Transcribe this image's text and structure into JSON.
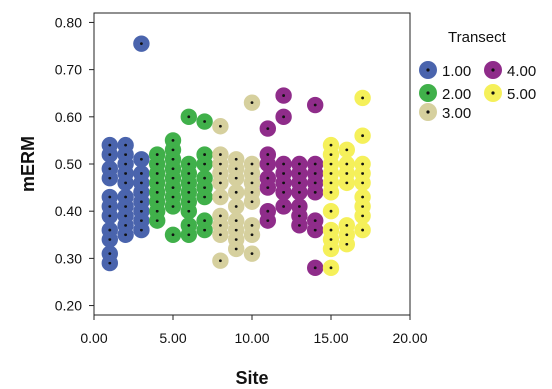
{
  "chart_data": {
    "type": "scatter",
    "title": "",
    "xlabel": "Site",
    "ylabel": "mERM",
    "xlim": [
      0,
      20
    ],
    "ylim": [
      0.18,
      0.82
    ],
    "xticks": [
      "0.00",
      "5.00",
      "10.00",
      "15.00",
      "20.00"
    ],
    "yticks": [
      "0.20",
      "0.30",
      "0.40",
      "0.50",
      "0.60",
      "0.70",
      "0.80"
    ],
    "grid": false,
    "legend": {
      "title": "Transect",
      "placement": "right",
      "entries": [
        "1.00",
        "2.00",
        "3.00",
        "4.00",
        "5.00"
      ]
    },
    "series": [
      {
        "name": "1.00",
        "color": "#4a64ad",
        "points": [
          {
            "x": 1,
            "y": 0.29
          },
          {
            "x": 1,
            "y": 0.31
          },
          {
            "x": 1,
            "y": 0.34
          },
          {
            "x": 1,
            "y": 0.36
          },
          {
            "x": 1,
            "y": 0.39
          },
          {
            "x": 1,
            "y": 0.41
          },
          {
            "x": 1,
            "y": 0.43
          },
          {
            "x": 1,
            "y": 0.47
          },
          {
            "x": 1,
            "y": 0.49
          },
          {
            "x": 1,
            "y": 0.52
          },
          {
            "x": 1,
            "y": 0.54
          },
          {
            "x": 2,
            "y": 0.35
          },
          {
            "x": 2,
            "y": 0.37
          },
          {
            "x": 2,
            "y": 0.39
          },
          {
            "x": 2,
            "y": 0.41
          },
          {
            "x": 2,
            "y": 0.43
          },
          {
            "x": 2,
            "y": 0.46
          },
          {
            "x": 2,
            "y": 0.48
          },
          {
            "x": 2,
            "y": 0.5
          },
          {
            "x": 2,
            "y": 0.52
          },
          {
            "x": 2,
            "y": 0.54
          },
          {
            "x": 3,
            "y": 0.36
          },
          {
            "x": 3,
            "y": 0.38
          },
          {
            "x": 3,
            "y": 0.4
          },
          {
            "x": 3,
            "y": 0.42
          },
          {
            "x": 3,
            "y": 0.44
          },
          {
            "x": 3,
            "y": 0.46
          },
          {
            "x": 3,
            "y": 0.48
          },
          {
            "x": 3,
            "y": 0.51
          },
          {
            "x": 3,
            "y": 0.755
          }
        ]
      },
      {
        "name": "2.00",
        "color": "#40b04a",
        "points": [
          {
            "x": 4,
            "y": 0.38
          },
          {
            "x": 4,
            "y": 0.4
          },
          {
            "x": 4,
            "y": 0.42
          },
          {
            "x": 4,
            "y": 0.44
          },
          {
            "x": 4,
            "y": 0.46
          },
          {
            "x": 4,
            "y": 0.48
          },
          {
            "x": 4,
            "y": 0.5
          },
          {
            "x": 4,
            "y": 0.52
          },
          {
            "x": 5,
            "y": 0.35
          },
          {
            "x": 5,
            "y": 0.41
          },
          {
            "x": 5,
            "y": 0.43
          },
          {
            "x": 5,
            "y": 0.45
          },
          {
            "x": 5,
            "y": 0.47
          },
          {
            "x": 5,
            "y": 0.49
          },
          {
            "x": 5,
            "y": 0.51
          },
          {
            "x": 5,
            "y": 0.53
          },
          {
            "x": 5,
            "y": 0.55
          },
          {
            "x": 6,
            "y": 0.35
          },
          {
            "x": 6,
            "y": 0.37
          },
          {
            "x": 6,
            "y": 0.4
          },
          {
            "x": 6,
            "y": 0.42
          },
          {
            "x": 6,
            "y": 0.44
          },
          {
            "x": 6,
            "y": 0.46
          },
          {
            "x": 6,
            "y": 0.48
          },
          {
            "x": 6,
            "y": 0.5
          },
          {
            "x": 6,
            "y": 0.6
          },
          {
            "x": 7,
            "y": 0.36
          },
          {
            "x": 7,
            "y": 0.38
          },
          {
            "x": 7,
            "y": 0.43
          },
          {
            "x": 7,
            "y": 0.45
          },
          {
            "x": 7,
            "y": 0.47
          },
          {
            "x": 7,
            "y": 0.5
          },
          {
            "x": 7,
            "y": 0.52
          },
          {
            "x": 7,
            "y": 0.59
          }
        ]
      },
      {
        "name": "3.00",
        "color": "#d6d09e",
        "points": [
          {
            "x": 8,
            "y": 0.295
          },
          {
            "x": 8,
            "y": 0.35
          },
          {
            "x": 8,
            "y": 0.37
          },
          {
            "x": 8,
            "y": 0.39
          },
          {
            "x": 8,
            "y": 0.43
          },
          {
            "x": 8,
            "y": 0.46
          },
          {
            "x": 8,
            "y": 0.48
          },
          {
            "x": 8,
            "y": 0.5
          },
          {
            "x": 8,
            "y": 0.52
          },
          {
            "x": 8,
            "y": 0.58
          },
          {
            "x": 9,
            "y": 0.32
          },
          {
            "x": 9,
            "y": 0.34
          },
          {
            "x": 9,
            "y": 0.36
          },
          {
            "x": 9,
            "y": 0.38
          },
          {
            "x": 9,
            "y": 0.41
          },
          {
            "x": 9,
            "y": 0.44
          },
          {
            "x": 9,
            "y": 0.47
          },
          {
            "x": 9,
            "y": 0.49
          },
          {
            "x": 9,
            "y": 0.51
          },
          {
            "x": 10,
            "y": 0.31
          },
          {
            "x": 10,
            "y": 0.35
          },
          {
            "x": 10,
            "y": 0.37
          },
          {
            "x": 10,
            "y": 0.42
          },
          {
            "x": 10,
            "y": 0.44
          },
          {
            "x": 10,
            "y": 0.46
          },
          {
            "x": 10,
            "y": 0.48
          },
          {
            "x": 10,
            "y": 0.5
          },
          {
            "x": 10,
            "y": 0.63
          }
        ]
      },
      {
        "name": "4.00",
        "color": "#8f2c8a",
        "points": [
          {
            "x": 11,
            "y": 0.38
          },
          {
            "x": 11,
            "y": 0.4
          },
          {
            "x": 11,
            "y": 0.45
          },
          {
            "x": 11,
            "y": 0.47
          },
          {
            "x": 11,
            "y": 0.5
          },
          {
            "x": 11,
            "y": 0.52
          },
          {
            "x": 11,
            "y": 0.575
          },
          {
            "x": 12,
            "y": 0.41
          },
          {
            "x": 12,
            "y": 0.44
          },
          {
            "x": 12,
            "y": 0.46
          },
          {
            "x": 12,
            "y": 0.48
          },
          {
            "x": 12,
            "y": 0.5
          },
          {
            "x": 12,
            "y": 0.6
          },
          {
            "x": 12,
            "y": 0.645
          },
          {
            "x": 13,
            "y": 0.37
          },
          {
            "x": 13,
            "y": 0.39
          },
          {
            "x": 13,
            "y": 0.41
          },
          {
            "x": 13,
            "y": 0.44
          },
          {
            "x": 13,
            "y": 0.46
          },
          {
            "x": 13,
            "y": 0.48
          },
          {
            "x": 13,
            "y": 0.5
          },
          {
            "x": 14,
            "y": 0.28
          },
          {
            "x": 14,
            "y": 0.36
          },
          {
            "x": 14,
            "y": 0.38
          },
          {
            "x": 14,
            "y": 0.44
          },
          {
            "x": 14,
            "y": 0.46
          },
          {
            "x": 14,
            "y": 0.48
          },
          {
            "x": 14,
            "y": 0.5
          },
          {
            "x": 14,
            "y": 0.625
          }
        ]
      },
      {
        "name": "5.00",
        "color": "#f5f05a",
        "points": [
          {
            "x": 15,
            "y": 0.28
          },
          {
            "x": 15,
            "y": 0.32
          },
          {
            "x": 15,
            "y": 0.34
          },
          {
            "x": 15,
            "y": 0.36
          },
          {
            "x": 15,
            "y": 0.4
          },
          {
            "x": 15,
            "y": 0.44
          },
          {
            "x": 15,
            "y": 0.46
          },
          {
            "x": 15,
            "y": 0.48
          },
          {
            "x": 15,
            "y": 0.5
          },
          {
            "x": 15,
            "y": 0.52
          },
          {
            "x": 15,
            "y": 0.54
          },
          {
            "x": 16,
            "y": 0.33
          },
          {
            "x": 16,
            "y": 0.35
          },
          {
            "x": 16,
            "y": 0.37
          },
          {
            "x": 16,
            "y": 0.46
          },
          {
            "x": 16,
            "y": 0.48
          },
          {
            "x": 16,
            "y": 0.5
          },
          {
            "x": 16,
            "y": 0.53
          },
          {
            "x": 17,
            "y": 0.36
          },
          {
            "x": 17,
            "y": 0.39
          },
          {
            "x": 17,
            "y": 0.41
          },
          {
            "x": 17,
            "y": 0.43
          },
          {
            "x": 17,
            "y": 0.46
          },
          {
            "x": 17,
            "y": 0.48
          },
          {
            "x": 17,
            "y": 0.5
          },
          {
            "x": 17,
            "y": 0.56
          },
          {
            "x": 17,
            "y": 0.64
          }
        ]
      }
    ]
  }
}
